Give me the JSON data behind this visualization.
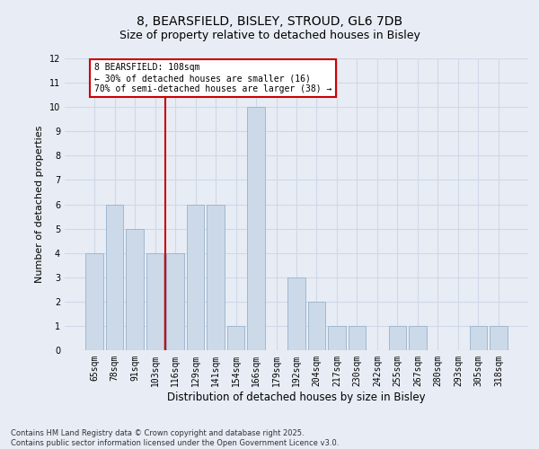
{
  "title_line1": "8, BEARSFIELD, BISLEY, STROUD, GL6 7DB",
  "title_line2": "Size of property relative to detached houses in Bisley",
  "xlabel": "Distribution of detached houses by size in Bisley",
  "ylabel": "Number of detached properties",
  "categories": [
    "65sqm",
    "78sqm",
    "91sqm",
    "103sqm",
    "116sqm",
    "129sqm",
    "141sqm",
    "154sqm",
    "166sqm",
    "179sqm",
    "192sqm",
    "204sqm",
    "217sqm",
    "230sqm",
    "242sqm",
    "255sqm",
    "267sqm",
    "280sqm",
    "293sqm",
    "305sqm",
    "318sqm"
  ],
  "values": [
    4,
    6,
    5,
    4,
    4,
    6,
    6,
    1,
    10,
    0,
    3,
    2,
    1,
    1,
    0,
    1,
    1,
    0,
    0,
    1,
    1
  ],
  "bar_color": "#ccd9e8",
  "bar_edge_color": "#a0b8d0",
  "grid_color": "#d0d8e8",
  "background_color": "#e8edf5",
  "ylim": [
    0,
    12
  ],
  "yticks": [
    0,
    1,
    2,
    3,
    4,
    5,
    6,
    7,
    8,
    9,
    10,
    11,
    12
  ],
  "red_line_x": 3.5,
  "annotation_text": "8 BEARSFIELD: 108sqm\n← 30% of detached houses are smaller (16)\n70% of semi-detached houses are larger (38) →",
  "annotation_box_color": "#ffffff",
  "annotation_box_edge_color": "#cc0000",
  "footer_text": "Contains HM Land Registry data © Crown copyright and database right 2025.\nContains public sector information licensed under the Open Government Licence v3.0.",
  "title_fontsize": 10,
  "subtitle_fontsize": 9,
  "tick_fontsize": 7,
  "ylabel_fontsize": 8,
  "xlabel_fontsize": 8.5,
  "annotation_fontsize": 7,
  "footer_fontsize": 6
}
